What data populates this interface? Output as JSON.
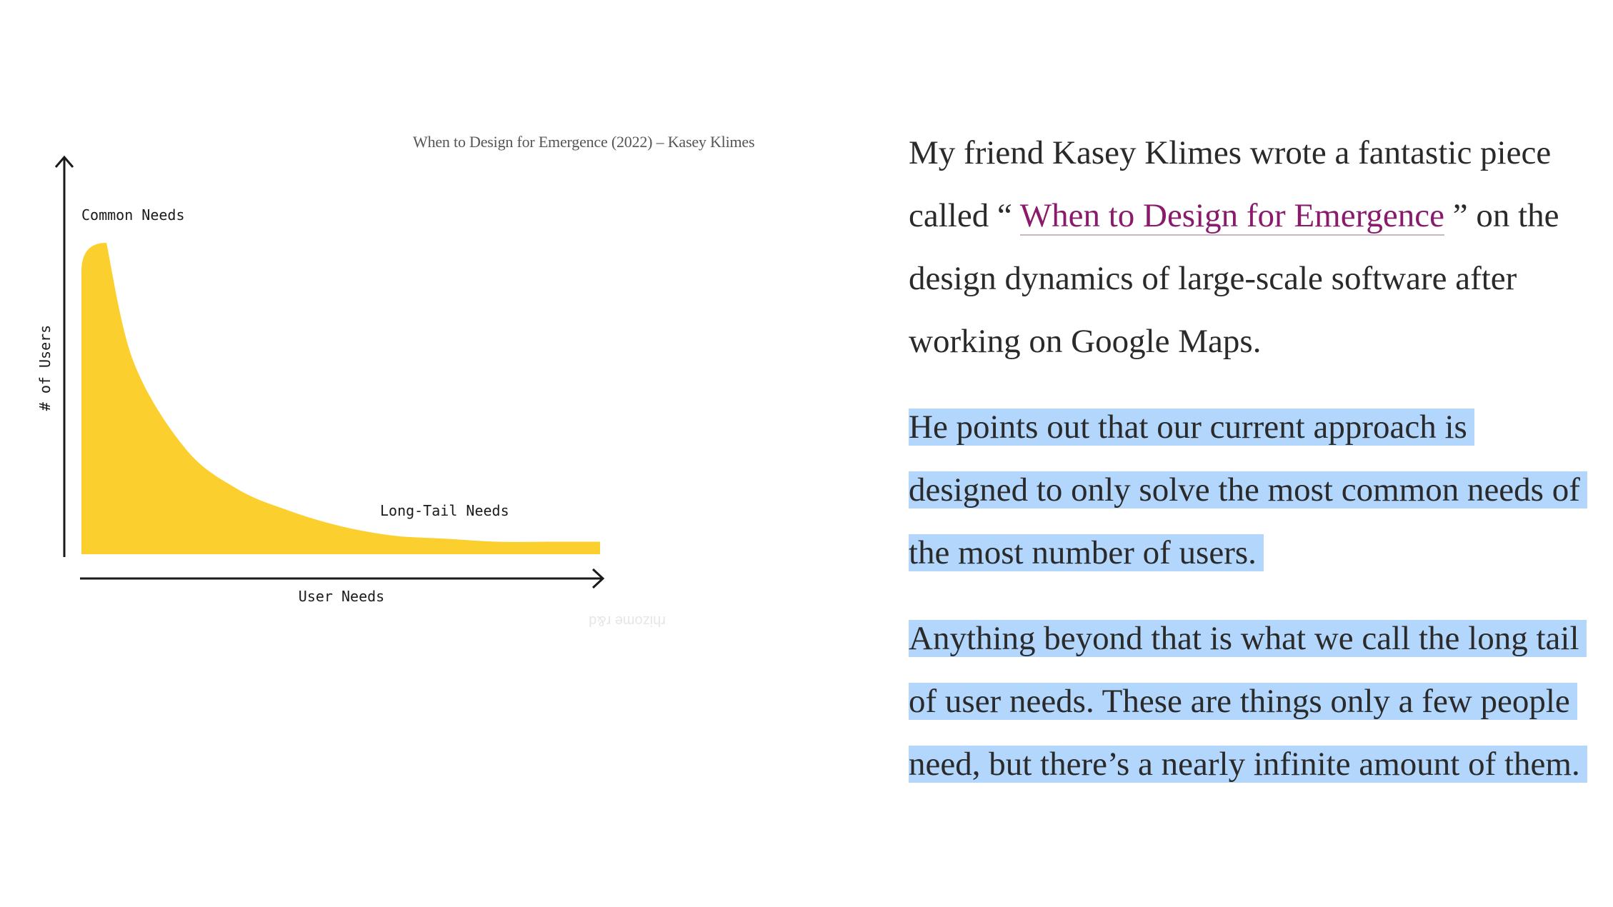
{
  "figure": {
    "caption": "When to Design for Emergence (2022) – Kasey Klimes",
    "chart_data": {
      "type": "area",
      "title": "",
      "xlabel": "User Needs",
      "ylabel": "# of Users",
      "annotations": [
        "Common Needs",
        "Long-Tail Needs"
      ],
      "watermark": "rhizome r&d",
      "x": [
        0,
        1,
        2,
        3,
        4,
        5,
        6,
        7,
        8,
        9,
        10
      ],
      "values": [
        100,
        62,
        34,
        21,
        14,
        9,
        6,
        5,
        4,
        4,
        4
      ],
      "ylim": [
        0,
        110
      ],
      "grid": false,
      "color": "#fbd02e"
    }
  },
  "article": {
    "p1_before": "My friend Kasey Klimes wrote a fantastic piece called “ ",
    "p1_link": "When to Design for Emergence",
    "p1_after": " ” on the design dynamics of large-scale software after working on Google Maps.",
    "p2": "He points out that our current approach is designed to only solve the most common needs of the most number of users.",
    "p3": "Anything beyond that is what we call the long tail of user needs. These are things only a few people need, but there’s a nearly infinite amount of them."
  },
  "colors": {
    "link": "#8a1a6b",
    "highlight": "#b3d6fd",
    "text": "#2a2a2a",
    "curve": "#fbd02e"
  }
}
